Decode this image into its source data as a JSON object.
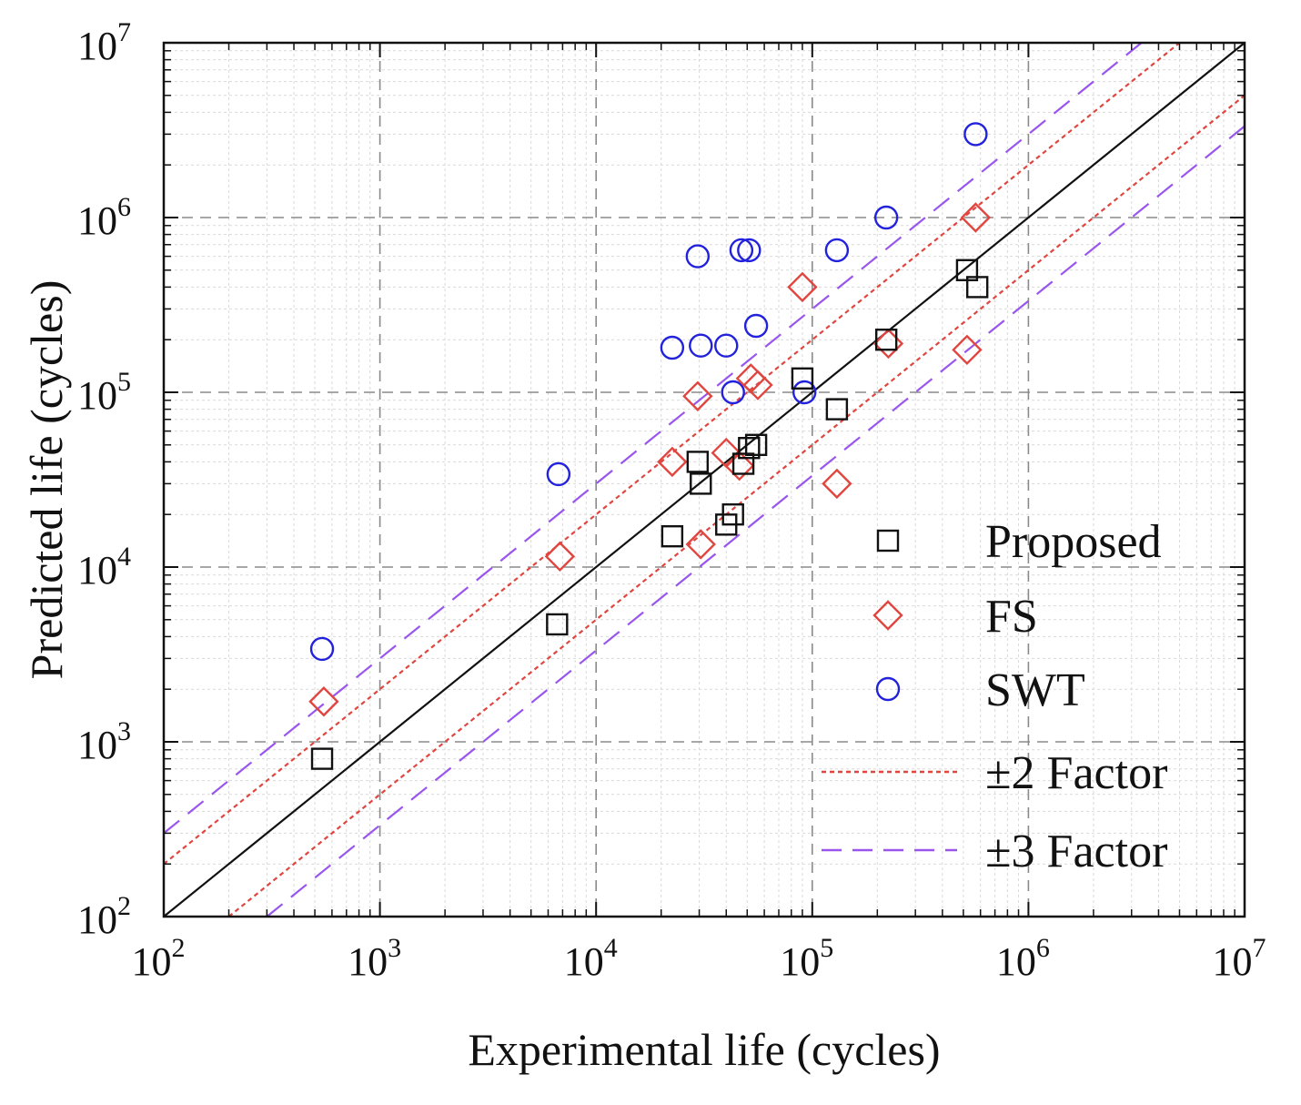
{
  "chart_data": {
    "type": "scatter",
    "xscale": "log",
    "yscale": "log",
    "xlim": [
      100,
      10000000
    ],
    "ylim": [
      100,
      10000000
    ],
    "xlabel": "Experimental life  (cycles)",
    "ylabel": "Predicted life  (cycles)",
    "tick_values": [
      100,
      1000,
      10000,
      100000,
      1000000,
      10000000
    ],
    "tick_labels": [
      {
        "base": "10",
        "exp": "2"
      },
      {
        "base": "10",
        "exp": "3"
      },
      {
        "base": "10",
        "exp": "4"
      },
      {
        "base": "10",
        "exp": "5"
      },
      {
        "base": "10",
        "exp": "6"
      },
      {
        "base": "10",
        "exp": "7"
      }
    ],
    "grid": true,
    "legend_position": "bottom-right",
    "series": [
      {
        "name": "Proposed",
        "marker": "square",
        "color": "#111111",
        "points": [
          [
            540,
            800
          ],
          [
            6600,
            4700
          ],
          [
            22500,
            15000
          ],
          [
            29500,
            40000
          ],
          [
            30500,
            30000
          ],
          [
            40000,
            17500
          ],
          [
            43000,
            20000
          ],
          [
            48000,
            39000
          ],
          [
            51000,
            48000
          ],
          [
            55000,
            50000
          ],
          [
            90000,
            120000
          ],
          [
            130000,
            80000
          ],
          [
            220000,
            200000
          ],
          [
            520000,
            500000
          ],
          [
            580000,
            400000
          ]
        ]
      },
      {
        "name": "FS",
        "marker": "diamond",
        "color": "#e0463f",
        "points": [
          [
            550,
            1700
          ],
          [
            6800,
            11500
          ],
          [
            22500,
            40000
          ],
          [
            29500,
            95000
          ],
          [
            30500,
            13500
          ],
          [
            40000,
            45000
          ],
          [
            46000,
            38000
          ],
          [
            52000,
            120000
          ],
          [
            56000,
            110000
          ],
          [
            90000,
            400000
          ],
          [
            130000,
            30000
          ],
          [
            225000,
            190000
          ],
          [
            520000,
            175000
          ],
          [
            570000,
            1000000
          ]
        ]
      },
      {
        "name": "SWT",
        "marker": "circle",
        "color": "#2222dd",
        "points": [
          [
            540,
            3400
          ],
          [
            6700,
            34000
          ],
          [
            22500,
            180000
          ],
          [
            29500,
            600000
          ],
          [
            30500,
            185000
          ],
          [
            40000,
            185000
          ],
          [
            43000,
            100000
          ],
          [
            47000,
            650000
          ],
          [
            51000,
            650000
          ],
          [
            55000,
            240000
          ],
          [
            92000,
            100000
          ],
          [
            130000,
            650000
          ],
          [
            220000,
            1000000
          ],
          [
            570000,
            3000000
          ]
        ]
      }
    ],
    "reference_lines": [
      {
        "name": "1:1",
        "factor": 1,
        "color": "#111111",
        "style": "solid"
      },
      {
        "name": "±2 Factor",
        "factors": [
          2,
          0.5
        ],
        "color": "#e0463f",
        "style": "dotted"
      },
      {
        "name": "±3 Factor",
        "factors": [
          3,
          0.3333
        ],
        "color": "#9955ee",
        "style": "dashed"
      }
    ],
    "legend": [
      {
        "label": "Proposed",
        "marker": "square",
        "color": "#111111"
      },
      {
        "label": "FS",
        "marker": "diamond",
        "color": "#e0463f"
      },
      {
        "label": "SWT",
        "marker": "circle",
        "color": "#2222dd"
      },
      {
        "label": "±2 Factor",
        "line": "dotted",
        "color": "#e0463f"
      },
      {
        "label": "±3 Factor",
        "line": "dashed",
        "color": "#9955ee"
      }
    ]
  }
}
